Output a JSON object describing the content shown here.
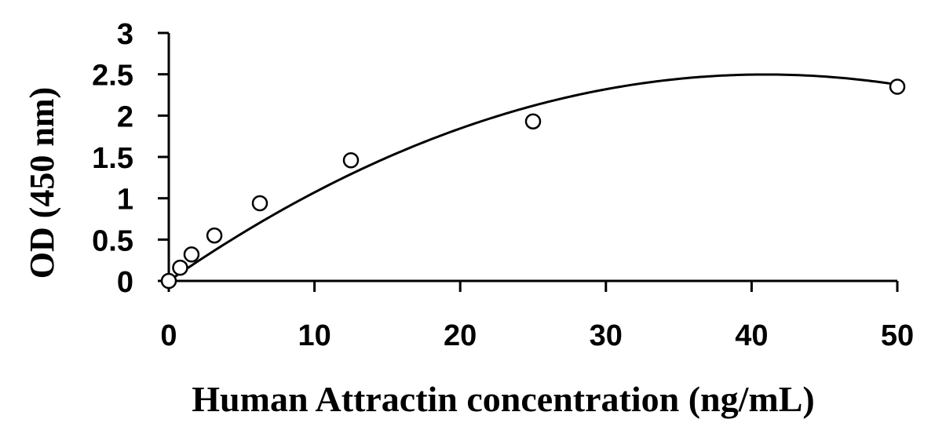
{
  "chart_data": {
    "type": "scatter",
    "title": "",
    "xlabel": "Human Attractin concentration (ng/mL)",
    "ylabel": "OD (450 nm)",
    "xlim": [
      0,
      50
    ],
    "ylim": [
      0,
      3
    ],
    "x_ticks": [
      0,
      10,
      20,
      30,
      40,
      50
    ],
    "x_tick_labels": [
      "0",
      "10",
      "20",
      "30",
      "40",
      "50"
    ],
    "y_ticks": [
      0,
      0.5,
      1,
      1.5,
      2,
      2.5,
      3
    ],
    "y_tick_labels": [
      "0",
      "0.5",
      "1",
      "1.5",
      "2",
      "2.5",
      "3"
    ],
    "grid": false,
    "legend": "none",
    "series": [
      {
        "marker": "open-circle",
        "x": [
          0,
          0.78,
          1.56,
          3.13,
          6.25,
          12.5,
          25,
          50
        ],
        "y": [
          0.0,
          0.16,
          0.32,
          0.55,
          0.94,
          1.46,
          1.93,
          2.35
        ]
      }
    ],
    "fit": {
      "type": "polynomial-2",
      "coefficients": [
        0.0,
        0.122,
        -0.00149
      ]
    }
  }
}
